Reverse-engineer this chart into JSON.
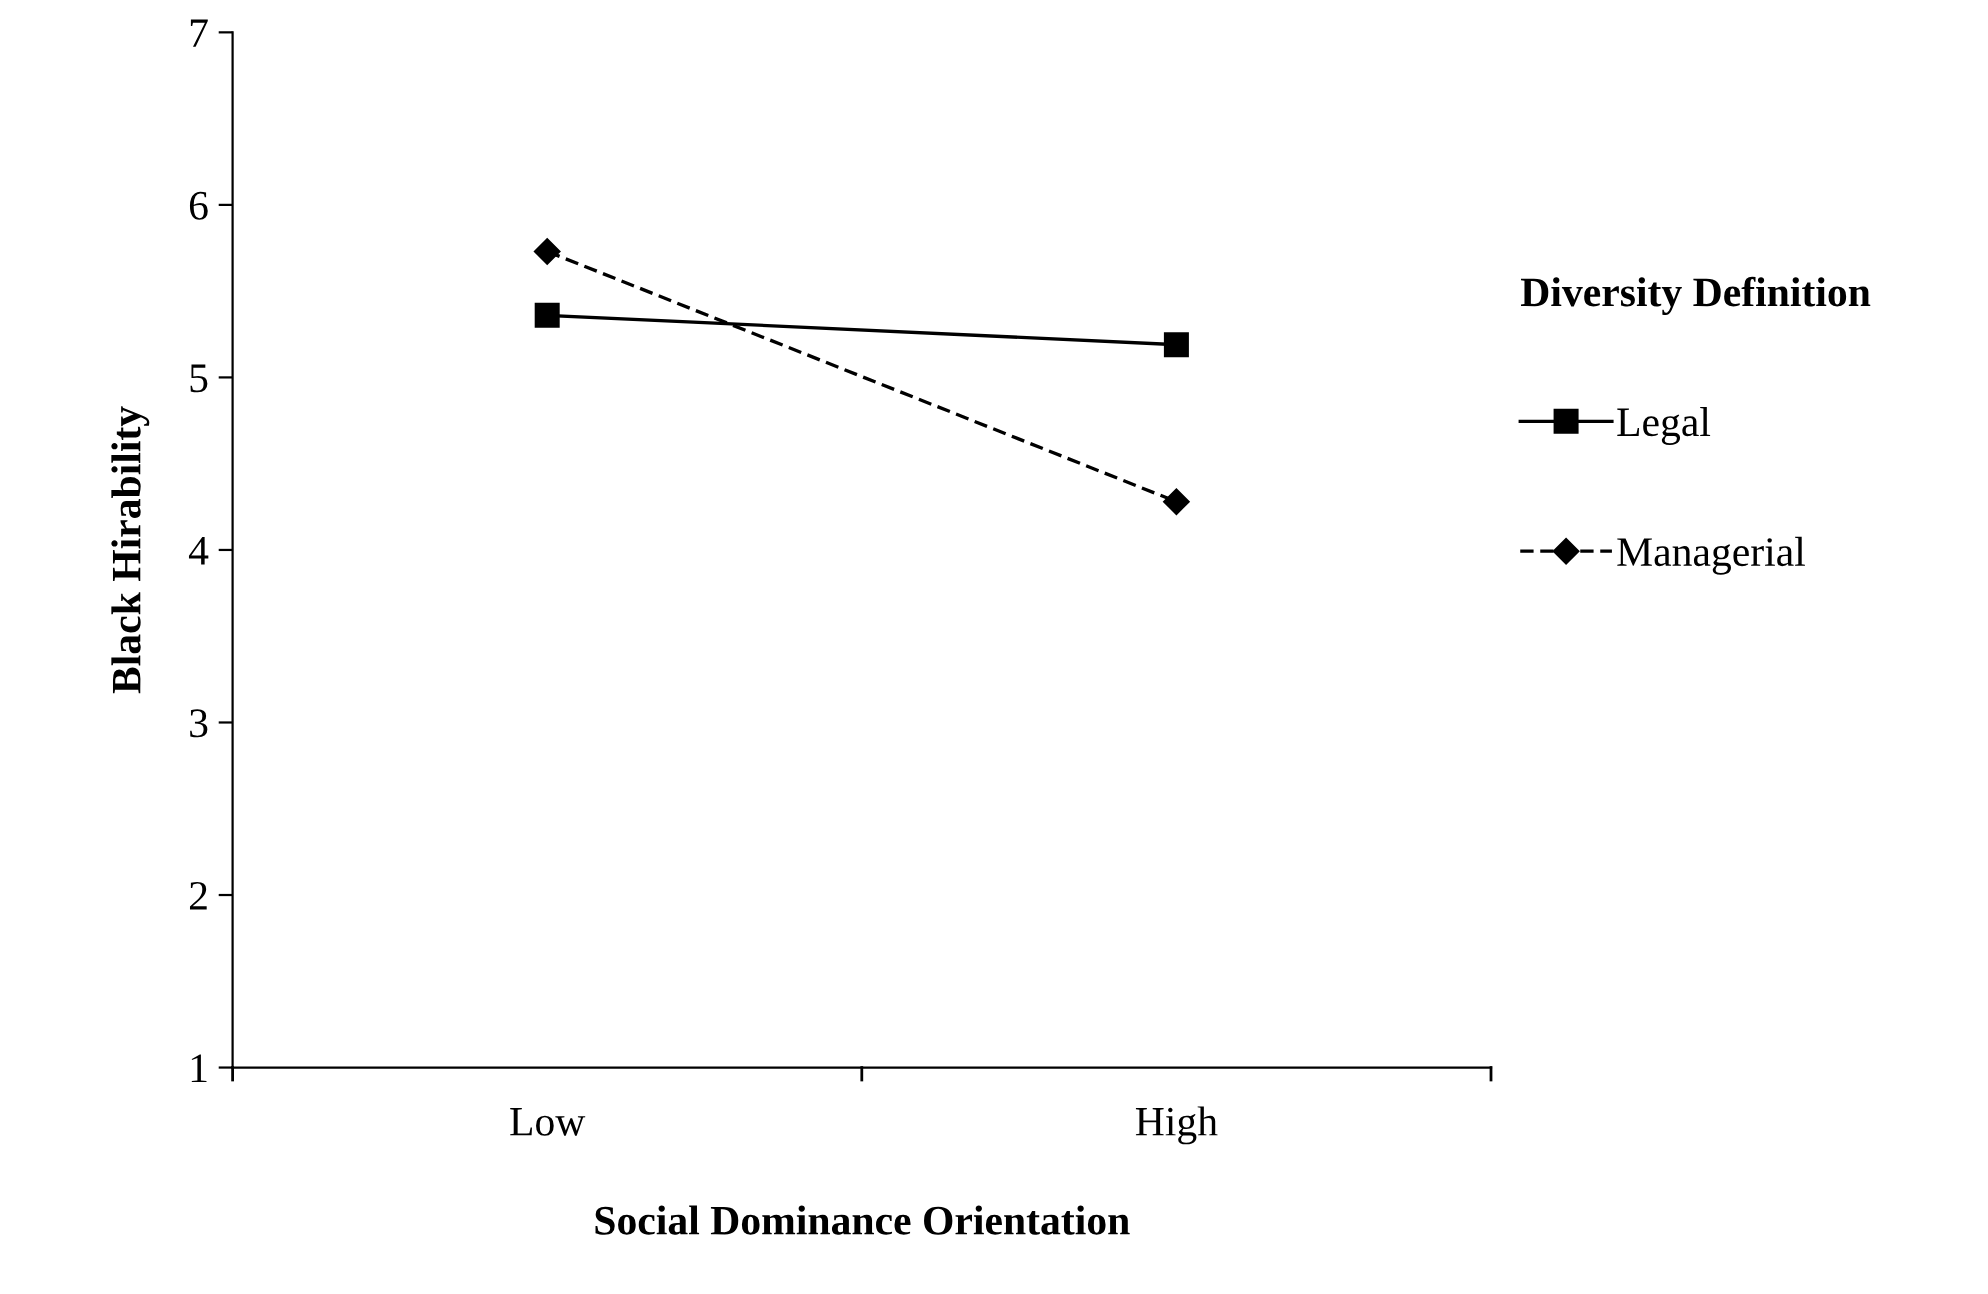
{
  "chart_data": {
    "type": "line",
    "xlabel": "Social Dominance Orientation",
    "ylabel": "Black Hirability",
    "legend_title": "Diversity Definition",
    "categories": [
      "Low",
      "High"
    ],
    "series": [
      {
        "name": "Legal",
        "color": "#000000",
        "values": [
          5.36,
          5.19
        ],
        "marker": "square",
        "line_style": "solid"
      },
      {
        "name": "Managerial",
        "color": "#000000",
        "values": [
          5.73,
          4.28
        ],
        "marker": "diamond",
        "line_style": "dashed"
      }
    ],
    "ylim": [
      1,
      7
    ],
    "yticks": [
      1,
      2,
      3,
      4,
      5,
      6,
      7
    ],
    "grid": false,
    "legend": "right"
  }
}
